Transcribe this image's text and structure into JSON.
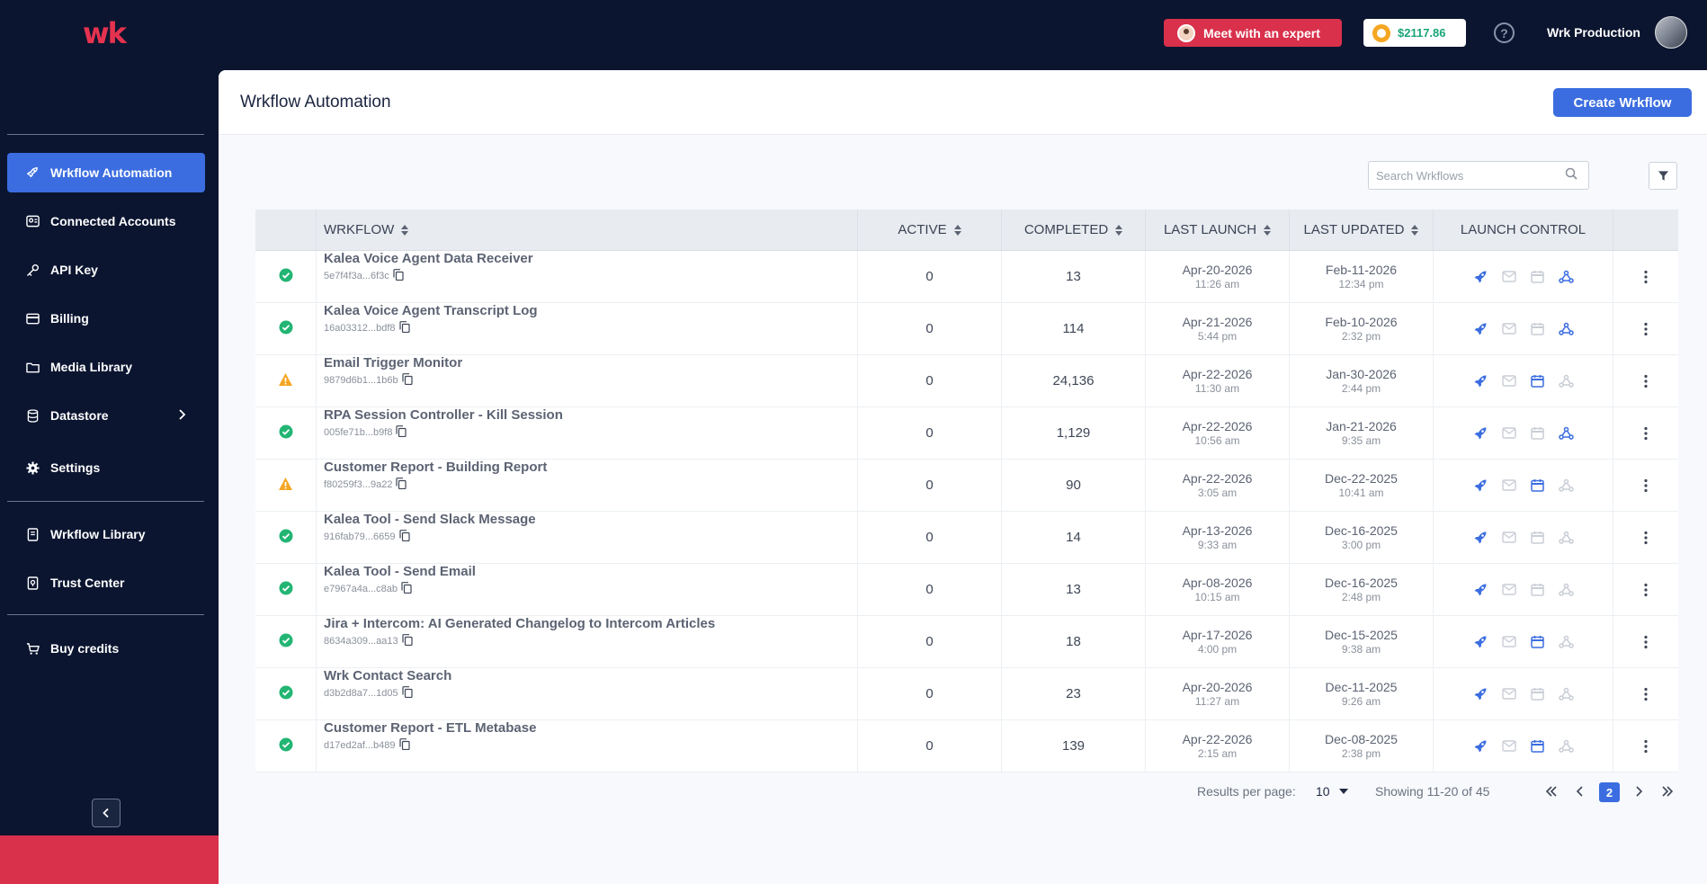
{
  "topbar": {
    "logo_text": "wk",
    "expert_label": "Meet with an expert",
    "credits": "$2117.86",
    "help_glyph": "?",
    "user_name": "Wrk Production"
  },
  "sidebar": {
    "items": [
      {
        "label": "Wrkflow Automation",
        "icon": "rocket-icon"
      },
      {
        "label": "Connected Accounts",
        "icon": "accounts-icon"
      },
      {
        "label": "API Key",
        "icon": "key-icon"
      },
      {
        "label": "Billing",
        "icon": "card-icon"
      },
      {
        "label": "Media Library",
        "icon": "folder-icon"
      },
      {
        "label": "Datastore",
        "icon": "database-icon"
      },
      {
        "label": "Settings",
        "icon": "gear-icon"
      },
      {
        "label": "Wrkflow Library",
        "icon": "book-icon"
      },
      {
        "label": "Trust Center",
        "icon": "shield-icon"
      },
      {
        "label": "Buy credits",
        "icon": "cart-icon"
      }
    ]
  },
  "main": {
    "title": "Wrkflow Automation",
    "create_label": "Create Wrkflow",
    "search_placeholder": "Search Wrkflows",
    "columns": [
      "WRKFLOW",
      "ACTIVE",
      "COMPLETED",
      "LAST LAUNCH",
      "LAST UPDATED",
      "LAUNCH CONTROL"
    ],
    "rows": [
      {
        "status": "ok",
        "name": "Kalea Voice Agent Data Receiver",
        "id": "5e7f4f3a...6f3c",
        "active": "0",
        "completed": "13",
        "launch_date": "Apr-20-2026",
        "launch_time": "11:26 am",
        "updated_date": "Feb-11-2026",
        "updated_time": "12:34 pm",
        "lc": [
          true,
          false,
          false,
          true
        ]
      },
      {
        "status": "ok",
        "name": "Kalea Voice Agent Transcript Log",
        "id": "16a03312...bdf8",
        "active": "0",
        "completed": "114",
        "launch_date": "Apr-21-2026",
        "launch_time": "5:44 pm",
        "updated_date": "Feb-10-2026",
        "updated_time": "2:32 pm",
        "lc": [
          true,
          false,
          false,
          true
        ]
      },
      {
        "status": "warn",
        "name": "Email Trigger Monitor",
        "id": "9879d6b1...1b6b",
        "active": "0",
        "completed": "24,136",
        "launch_date": "Apr-22-2026",
        "launch_time": "11:30 am",
        "updated_date": "Jan-30-2026",
        "updated_time": "2:44 pm",
        "lc": [
          true,
          false,
          true,
          false
        ]
      },
      {
        "status": "ok",
        "name": "RPA Session Controller - Kill Session",
        "id": "005fe71b...b9f8",
        "active": "0",
        "completed": "1,129",
        "launch_date": "Apr-22-2026",
        "launch_time": "10:56 am",
        "updated_date": "Jan-21-2026",
        "updated_time": "9:35 am",
        "lc": [
          true,
          false,
          false,
          true
        ]
      },
      {
        "status": "warn",
        "name": "Customer Report - Building Report",
        "id": "f80259f3...9a22",
        "active": "0",
        "completed": "90",
        "launch_date": "Apr-22-2026",
        "launch_time": "3:05 am",
        "updated_date": "Dec-22-2025",
        "updated_time": "10:41 am",
        "lc": [
          true,
          false,
          true,
          false
        ]
      },
      {
        "status": "ok",
        "name": "Kalea Tool - Send Slack Message",
        "id": "916fab79...6659",
        "active": "0",
        "completed": "14",
        "launch_date": "Apr-13-2026",
        "launch_time": "9:33 am",
        "updated_date": "Dec-16-2025",
        "updated_time": "3:00 pm",
        "lc": [
          true,
          false,
          false,
          false
        ]
      },
      {
        "status": "ok",
        "name": "Kalea Tool - Send Email",
        "id": "e7967a4a...c8ab",
        "active": "0",
        "completed": "13",
        "launch_date": "Apr-08-2026",
        "launch_time": "10:15 am",
        "updated_date": "Dec-16-2025",
        "updated_time": "2:48 pm",
        "lc": [
          true,
          false,
          false,
          false
        ]
      },
      {
        "status": "ok",
        "name": "Jira + Intercom: AI Generated Changelog to Intercom Articles",
        "id": "8634a309...aa13",
        "active": "0",
        "completed": "18",
        "launch_date": "Apr-17-2026",
        "launch_time": "4:00 pm",
        "updated_date": "Dec-15-2025",
        "updated_time": "9:38 am",
        "lc": [
          true,
          false,
          true,
          false
        ]
      },
      {
        "status": "ok",
        "name": "Wrk Contact Search",
        "id": "d3b2d8a7...1d05",
        "active": "0",
        "completed": "23",
        "launch_date": "Apr-20-2026",
        "launch_time": "11:27 am",
        "updated_date": "Dec-11-2025",
        "updated_time": "9:26 am",
        "lc": [
          true,
          false,
          false,
          false
        ]
      },
      {
        "status": "ok",
        "name": "Customer Report - ETL Metabase",
        "id": "d17ed2af...b489",
        "active": "0",
        "completed": "139",
        "launch_date": "Apr-22-2026",
        "launch_time": "2:15 am",
        "updated_date": "Dec-08-2025",
        "updated_time": "2:38 pm",
        "lc": [
          true,
          false,
          true,
          false
        ]
      }
    ]
  },
  "pagination": {
    "rpp_label": "Results per page:",
    "rpp_value": "10",
    "showing": "Showing 11-20 of 45",
    "current_page": "2"
  },
  "colors": {
    "accent": "#3b6de0",
    "brand_red": "#d9304b",
    "ok": "#22b573",
    "warn": "#f5a623",
    "icon_active": "#3b6de0",
    "icon_inactive": "#c9cdd5"
  }
}
